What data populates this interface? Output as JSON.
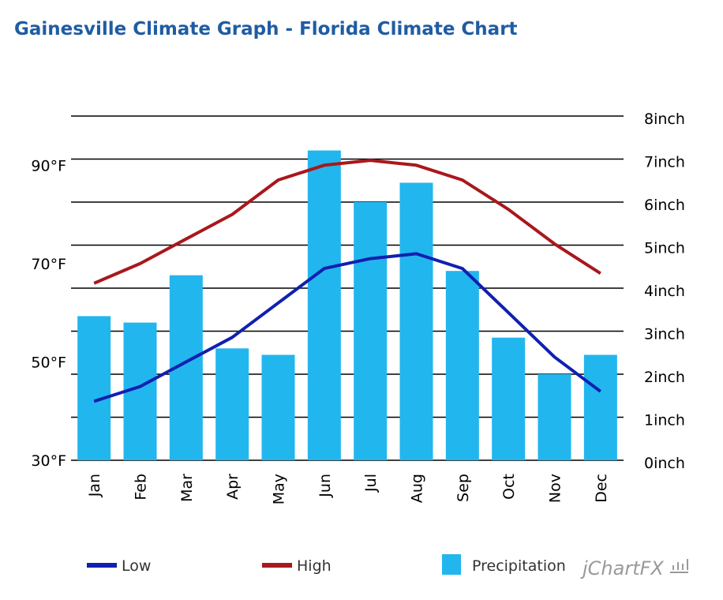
{
  "title": "Gainesville Climate Graph - Florida Climate Chart",
  "brand": "jChartFX",
  "colors": {
    "low": "#1020b0",
    "high": "#a8181c",
    "precipitation": "#22b6ee",
    "grid": "#000000",
    "title": "#1f5ca3"
  },
  "chart_data": {
    "type": "bar",
    "title": "Gainesville Climate Graph - Florida Climate Chart",
    "categories": [
      "Jan",
      "Feb",
      "Mar",
      "Apr",
      "May",
      "Jun",
      "Jul",
      "Aug",
      "Sep",
      "Oct",
      "Nov",
      "Dec"
    ],
    "left_axis": {
      "min": 30,
      "max": 100,
      "ticks": [
        30,
        50,
        70,
        90
      ],
      "tick_labels": [
        "30°F",
        "50°F",
        "70°F",
        "90°F"
      ]
    },
    "right_axis": {
      "min": 0,
      "max": 8,
      "ticks": [
        0,
        1,
        2,
        3,
        4,
        5,
        6,
        7,
        8
      ],
      "tick_labels": [
        "0inch",
        "1inch",
        "2inch",
        "3inch",
        "4inch",
        "5inch",
        "6inch",
        "7inch",
        "8inch"
      ]
    },
    "series": [
      {
        "name": "Precipitation",
        "type": "bar",
        "axis": "right",
        "values": [
          3.35,
          3.2,
          4.3,
          2.6,
          2.45,
          7.2,
          6.0,
          6.45,
          4.4,
          2.85,
          2.0,
          2.45
        ]
      },
      {
        "name": "Low",
        "type": "line",
        "axis": "left",
        "values": [
          42,
          45,
          50,
          55,
          62,
          69,
          71,
          72,
          69,
          60,
          51,
          44
        ]
      },
      {
        "name": "High",
        "type": "line",
        "axis": "left",
        "values": [
          66,
          70,
          75,
          80,
          87,
          90,
          91,
          90,
          87,
          81,
          74,
          68
        ]
      }
    ],
    "grid": true,
    "legend": "bottom"
  },
  "legend": [
    {
      "label": "Low",
      "kind": "line",
      "color": "#1020b0"
    },
    {
      "label": "High",
      "kind": "line",
      "color": "#a8181c"
    },
    {
      "label": "Precipitation",
      "kind": "box",
      "color": "#22b6ee"
    }
  ]
}
